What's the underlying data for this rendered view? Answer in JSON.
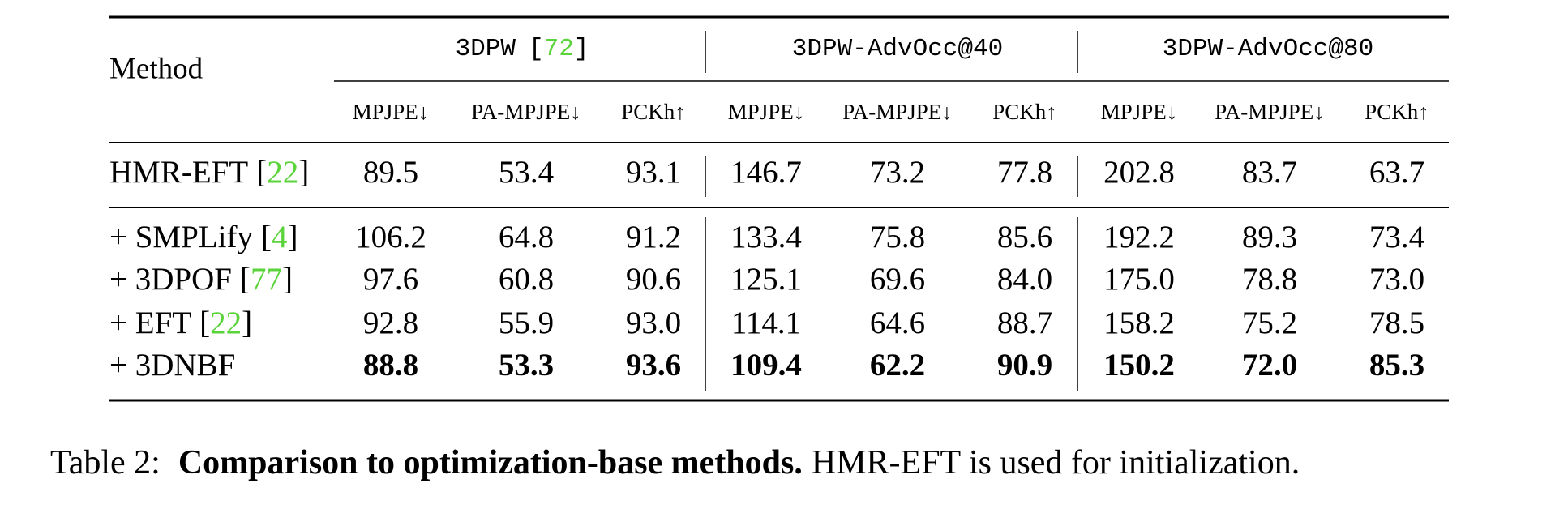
{
  "table": {
    "method_header": "Method",
    "brackets": [
      "[",
      "]"
    ],
    "groups": [
      {
        "name": "3DPW",
        "citation": "72"
      },
      {
        "name": "3DPW-AdvOcc@40"
      },
      {
        "name": "3DPW-AdvOcc@80"
      }
    ],
    "metrics": [
      "MPJPE↓",
      "PA-MPJPE↓",
      "PCKh↑",
      "MPJPE↓",
      "PA-MPJPE↓",
      "PCKh↑",
      "MPJPE↓",
      "PA-MPJPE↓",
      "PCKh↑"
    ],
    "rows": [
      {
        "method": "HMR-EFT",
        "citation": "22",
        "values": [
          "89.5",
          "53.4",
          "93.1",
          "146.7",
          "73.2",
          "77.8",
          "202.8",
          "83.7",
          "63.7"
        ]
      },
      {
        "method": "+ SMPLify",
        "citation": "4",
        "values": [
          "106.2",
          "64.8",
          "91.2",
          "133.4",
          "75.8",
          "85.6",
          "192.2",
          "89.3",
          "73.4"
        ]
      },
      {
        "method": "+ 3DPOF",
        "citation": "77",
        "values": [
          "97.6",
          "60.8",
          "90.6",
          "125.1",
          "69.6",
          "84.0",
          "175.0",
          "78.8",
          "73.0"
        ]
      },
      {
        "method": "+ EFT",
        "citation": "22",
        "values": [
          "92.8",
          "55.9",
          "93.0",
          "114.1",
          "64.6",
          "88.7",
          "158.2",
          "75.2",
          "78.5"
        ]
      },
      {
        "method": "+ 3DNBF",
        "values": [
          "88.8",
          "53.3",
          "93.6",
          "109.4",
          "62.2",
          "90.9",
          "150.2",
          "72.0",
          "85.3"
        ],
        "bold": true
      }
    ]
  },
  "caption": {
    "label": "Table 2:",
    "title": "Comparison to optimization-base methods.",
    "text": "HMR-EFT is used for initialization."
  }
}
